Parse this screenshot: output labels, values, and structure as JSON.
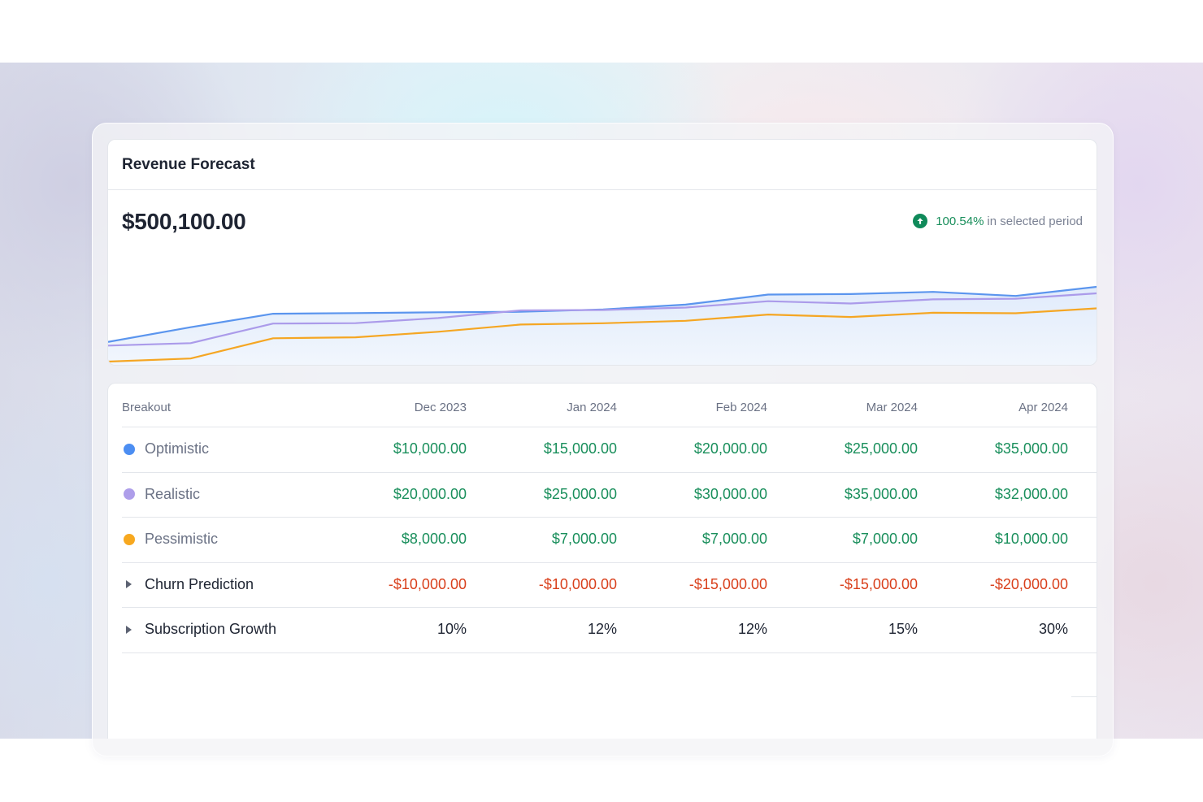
{
  "card": {
    "title": "Revenue Forecast",
    "total": "$500,100.00",
    "change_value": "100.54%",
    "change_label": "in selected period",
    "change_icon": "arrow-up-circle-icon"
  },
  "chart_data": {
    "type": "line",
    "x_points": 13,
    "series": [
      {
        "key": "optimistic",
        "color": "#5b95ee",
        "values": [
          20,
          32,
          43,
          43.5,
          44.2,
          44.6,
          46.5,
          50.4,
          58.6,
          59.0,
          60.8,
          57.5,
          65.0
        ]
      },
      {
        "key": "realistic",
        "color": "#ab9bea",
        "values": [
          17,
          19,
          35,
          35.3,
          39.5,
          45.7,
          46,
          48,
          53.2,
          51.3,
          54.7,
          55.2,
          59.7
        ]
      },
      {
        "key": "pessimistic",
        "color": "#f5a623",
        "values": [
          4,
          6.5,
          23,
          23.8,
          28.3,
          34.2,
          35.2,
          37.2,
          42.3,
          40.3,
          43.8,
          43.4,
          47.4
        ]
      }
    ],
    "colors": {
      "fill": "#e9f1fc"
    }
  },
  "table": {
    "headers": [
      "Breakout",
      "Dec 2023",
      "Jan 2024",
      "Feb 2024",
      "Mar 2024",
      "Apr 2024"
    ],
    "rows": [
      {
        "label": "Optimistic",
        "marker": "dot",
        "color": "#4c8ef2",
        "style": "pos",
        "values": [
          "$10,000.00",
          "$15,000.00",
          "$20,000.00",
          "$25,000.00",
          "$35,000.00"
        ]
      },
      {
        "label": "Realistic",
        "marker": "dot",
        "color": "#ae9eea",
        "style": "pos",
        "values": [
          "$20,000.00",
          "$25,000.00",
          "$30,000.00",
          "$35,000.00",
          "$32,000.00"
        ]
      },
      {
        "label": "Pessimistic",
        "marker": "dot",
        "color": "#f7a81f",
        "style": "pos",
        "values": [
          "$8,000.00",
          "$7,000.00",
          "$7,000.00",
          "$7,000.00",
          "$10,000.00"
        ]
      },
      {
        "label": "Churn Prediction",
        "marker": "caret",
        "style": "neg",
        "values": [
          "-$10,000.00",
          "-$10,000.00",
          "-$15,000.00",
          "-$15,000.00",
          "-$20,000.00"
        ]
      },
      {
        "label": "Subscription Growth",
        "marker": "caret",
        "style": "plain",
        "values": [
          "10%",
          "12%",
          "12%",
          "15%",
          "30%"
        ]
      }
    ]
  },
  "colors": {
    "positive": "#1a8f5c",
    "negative": "#d9401c",
    "text": "#1e2432",
    "muted": "#6b7285"
  }
}
